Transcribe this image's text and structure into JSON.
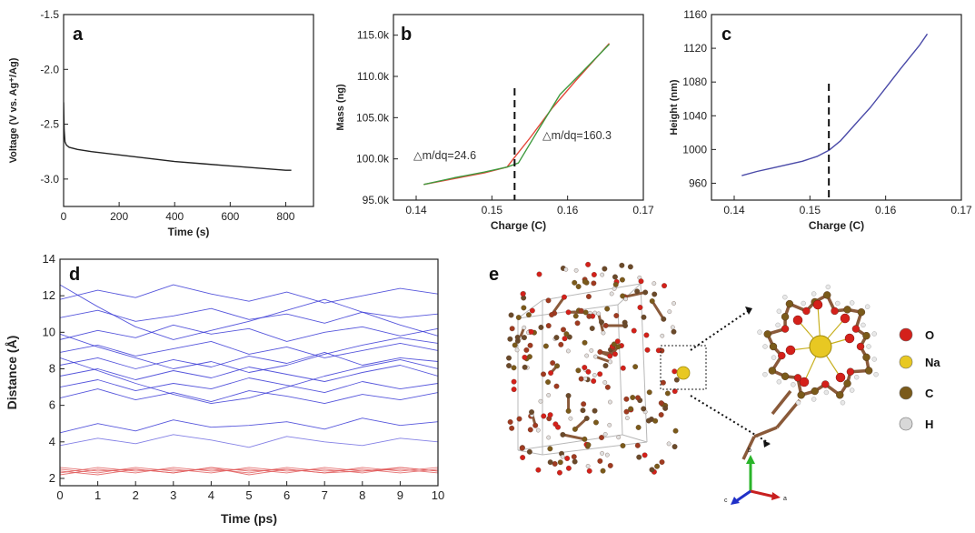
{
  "chart_data": [
    {
      "panel": "a",
      "type": "line",
      "xlabel": "Time (s)",
      "ylabel": "Voltage (V vs. Ag⁺/Ag)",
      "xlim": [
        0,
        900
      ],
      "ylim": [
        -3.25,
        -1.5
      ],
      "y_reversed": true,
      "xticks": [
        0,
        200,
        400,
        600,
        800
      ],
      "yticks": [
        -1.5,
        -2.0,
        -2.5,
        -3.0
      ],
      "ytick_labels": [
        "-1.5",
        "-2.0",
        "-2.5",
        "-3.0"
      ],
      "series": [
        {
          "color": "#222222",
          "x": [
            0,
            2,
            5,
            10,
            20,
            50,
            100,
            200,
            300,
            400,
            500,
            600,
            700,
            800,
            820
          ],
          "y": [
            -2.3,
            -2.55,
            -2.66,
            -2.69,
            -2.71,
            -2.73,
            -2.75,
            -2.78,
            -2.81,
            -2.84,
            -2.86,
            -2.88,
            -2.9,
            -2.92,
            -2.92
          ]
        }
      ]
    },
    {
      "panel": "b",
      "type": "line",
      "xlabel": "Charge (C)",
      "ylabel": "Mass (ng)",
      "xlim": [
        0.137,
        0.17
      ],
      "ylim": [
        95000,
        117500
      ],
      "xticks": [
        0.14,
        0.15,
        0.16,
        0.17
      ],
      "xtick_labels": [
        "0.14",
        "0.15",
        "0.16",
        "0.17"
      ],
      "yticks": [
        95000,
        100000,
        105000,
        110000,
        115000
      ],
      "ytick_labels": [
        "95.0k",
        "100.0k",
        "105.0k",
        "110.0k",
        "115.0k"
      ],
      "dashed_x": 0.153,
      "annotations": [
        "△m/dq=24.6",
        "△m/dq=160.3"
      ],
      "series": [
        {
          "color": "#e4473a",
          "x": [
            0.141,
            0.145,
            0.149,
            0.152,
            0.153,
            0.155,
            0.158,
            0.161,
            0.1655
          ],
          "y": [
            96900,
            97600,
            98300,
            99000,
            100200,
            102500,
            106200,
            109400,
            114000
          ]
        },
        {
          "color": "#3e9a3e",
          "x": [
            0.141,
            0.145,
            0.149,
            0.152,
            0.1535,
            0.156,
            0.159,
            0.162,
            0.1655
          ],
          "y": [
            96900,
            97700,
            98400,
            99000,
            99500,
            103300,
            107800,
            110600,
            113900
          ]
        }
      ]
    },
    {
      "panel": "c",
      "type": "line",
      "xlabel": "Charge (C)",
      "ylabel": "Height (nm)",
      "xlim": [
        0.137,
        0.17
      ],
      "ylim": [
        940,
        1160
      ],
      "xticks": [
        0.14,
        0.15,
        0.16,
        0.17
      ],
      "xtick_labels": [
        "0.14",
        "0.15",
        "0.16",
        "0.17"
      ],
      "yticks": [
        960,
        1000,
        1040,
        1080,
        1120,
        1160
      ],
      "dashed_x": 0.1525,
      "series": [
        {
          "color": "#4a4aa8",
          "x": [
            0.141,
            0.143,
            0.145,
            0.147,
            0.149,
            0.151,
            0.1525,
            0.154,
            0.156,
            0.158,
            0.16,
            0.162,
            0.1645,
            0.1655
          ],
          "y": [
            969,
            974,
            978,
            982,
            986,
            992,
            999,
            1010,
            1030,
            1050,
            1073,
            1096,
            1124,
            1137
          ]
        }
      ]
    },
    {
      "panel": "d",
      "type": "line",
      "xlabel": "Time (ps)",
      "ylabel": "Distance (Å)",
      "ylabel_rendered": "Distance (Å)",
      "xlim": [
        0,
        10
      ],
      "ylim": [
        1.6,
        14
      ],
      "xticks": [
        0,
        1,
        2,
        3,
        4,
        5,
        6,
        7,
        8,
        9,
        10
      ],
      "yticks": [
        2,
        4,
        6,
        8,
        10,
        12,
        14
      ],
      "series_description": "many trajectories",
      "series": [
        {
          "color": "#3a3ad6",
          "x": [
            0,
            1,
            2,
            3,
            4,
            5,
            6,
            7,
            8,
            9,
            10
          ],
          "y": [
            11.8,
            12.3,
            11.9,
            12.6,
            12.1,
            11.7,
            12.2,
            11.6,
            12.0,
            12.4,
            12.1
          ]
        },
        {
          "color": "#3a3ad6",
          "x": [
            0,
            1,
            2,
            3,
            4,
            5,
            6,
            7,
            8,
            9,
            10
          ],
          "y": [
            10.8,
            11.2,
            10.6,
            10.9,
            11.3,
            10.7,
            11.0,
            10.5,
            11.1,
            10.8,
            11.0
          ]
        },
        {
          "color": "#3a3ad6",
          "x": [
            0,
            1,
            2,
            3,
            4,
            5,
            6,
            7,
            8,
            9,
            10
          ],
          "y": [
            9.6,
            10.1,
            9.7,
            10.4,
            9.9,
            10.2,
            9.5,
            10.0,
            10.3,
            9.8,
            10.2
          ]
        },
        {
          "color": "#3a3ad6",
          "x": [
            0,
            1,
            2,
            3,
            4,
            5,
            6,
            7,
            8,
            9,
            10
          ],
          "y": [
            8.9,
            9.3,
            8.7,
            9.1,
            9.5,
            8.8,
            9.2,
            8.6,
            9.0,
            9.4,
            9.0
          ]
        },
        {
          "color": "#3a3ad6",
          "x": [
            0,
            1,
            2,
            3,
            4,
            5,
            6,
            7,
            8,
            9,
            10
          ],
          "y": [
            8.2,
            8.6,
            8.0,
            8.5,
            8.1,
            8.7,
            8.3,
            8.9,
            8.2,
            8.6,
            8.4
          ]
        },
        {
          "color": "#3a3ad6",
          "x": [
            0,
            1,
            2,
            3,
            4,
            5,
            6,
            7,
            8,
            9,
            10
          ],
          "y": [
            7.6,
            8.0,
            7.4,
            7.9,
            7.5,
            8.1,
            7.7,
            7.3,
            7.8,
            8.2,
            7.6
          ]
        },
        {
          "color": "#3a3ad6",
          "x": [
            0,
            1,
            2,
            3,
            4,
            5,
            6,
            7,
            8,
            9,
            10
          ],
          "y": [
            7.0,
            7.4,
            6.8,
            7.2,
            6.9,
            7.5,
            7.1,
            6.7,
            7.3,
            6.9,
            7.2
          ]
        },
        {
          "color": "#3a3ad6",
          "x": [
            0,
            1,
            2,
            3,
            4,
            5,
            6,
            7,
            8,
            9,
            10
          ],
          "y": [
            6.4,
            6.9,
            6.3,
            6.7,
            6.2,
            6.8,
            6.5,
            6.1,
            6.6,
            6.3,
            6.7
          ]
        },
        {
          "color": "#3a3ad6",
          "x": [
            0,
            1,
            2,
            3,
            4,
            5,
            6,
            7,
            8,
            9,
            10
          ],
          "y": [
            9.9,
            9.2,
            8.6,
            8.0,
            8.4,
            7.8,
            8.2,
            8.8,
            9.3,
            9.7,
            9.4
          ]
        },
        {
          "color": "#3a3ad6",
          "x": [
            0,
            1,
            2,
            3,
            4,
            5,
            6,
            7,
            8,
            9,
            10
          ],
          "y": [
            12.6,
            11.4,
            10.3,
            9.6,
            10.1,
            10.6,
            11.2,
            11.8,
            11.1,
            10.4,
            9.8
          ]
        },
        {
          "color": "#3a3ad6",
          "x": [
            0,
            1,
            2,
            3,
            4,
            5,
            6,
            7,
            8,
            9,
            10
          ],
          "y": [
            8.6,
            7.9,
            7.2,
            6.6,
            6.1,
            6.4,
            7.0,
            7.6,
            8.1,
            8.5,
            8.0
          ]
        },
        {
          "color": "#3a3ad6",
          "x": [
            0,
            1,
            2,
            3,
            4,
            5,
            6,
            7,
            8,
            9,
            10
          ],
          "y": [
            4.5,
            5.0,
            4.6,
            5.2,
            4.8,
            4.9,
            5.1,
            4.7,
            5.3,
            4.9,
            5.1
          ]
        },
        {
          "color": "#6d6ae0",
          "x": [
            0,
            1,
            2,
            3,
            4,
            5,
            6,
            7,
            8,
            9,
            10
          ],
          "y": [
            3.8,
            4.2,
            3.9,
            4.4,
            4.1,
            3.7,
            4.3,
            4.0,
            3.8,
            4.2,
            4.0
          ]
        },
        {
          "color": "#e05a5a",
          "x": [
            0,
            1,
            2,
            3,
            4,
            5,
            6,
            7,
            8,
            9,
            10
          ],
          "y": [
            2.5,
            2.3,
            2.6,
            2.4,
            2.5,
            2.3,
            2.6,
            2.4,
            2.5,
            2.3,
            2.5
          ]
        },
        {
          "color": "#e05a5a",
          "x": [
            0,
            1,
            2,
            3,
            4,
            5,
            6,
            7,
            8,
            9,
            10
          ],
          "y": [
            2.3,
            2.6,
            2.4,
            2.5,
            2.3,
            2.6,
            2.4,
            2.5,
            2.3,
            2.6,
            2.4
          ]
        },
        {
          "color": "#e05a5a",
          "x": [
            0,
            1,
            2,
            3,
            4,
            5,
            6,
            7,
            8,
            9,
            10
          ],
          "y": [
            2.6,
            2.4,
            2.5,
            2.3,
            2.6,
            2.4,
            2.5,
            2.3,
            2.6,
            2.4,
            2.6
          ]
        },
        {
          "color": "#e05a5a",
          "x": [
            0,
            1,
            2,
            3,
            4,
            5,
            6,
            7,
            8,
            9,
            10
          ],
          "y": [
            2.2,
            2.5,
            2.3,
            2.6,
            2.4,
            2.5,
            2.3,
            2.6,
            2.4,
            2.5,
            2.3
          ]
        },
        {
          "color": "#e05a5a",
          "x": [
            0,
            1,
            2,
            3,
            4,
            5,
            6,
            7,
            8,
            9,
            10
          ],
          "y": [
            2.4,
            2.2,
            2.5,
            2.3,
            2.6,
            2.2,
            2.5,
            2.3,
            2.4,
            2.6,
            2.4
          ]
        }
      ]
    }
  ],
  "panel_labels": {
    "a": "a",
    "b": "b",
    "c": "c",
    "d": "d",
    "e": "e"
  },
  "structure_legend": [
    {
      "label": "O",
      "color": "#d4201a"
    },
    {
      "label": "Na",
      "color": "#e8c822"
    },
    {
      "label": "C",
      "color": "#7a5a1a"
    },
    {
      "label": "H",
      "color": "#d8d8d8"
    }
  ],
  "axis_triad": {
    "labels": [
      "b",
      "c",
      "a"
    ]
  }
}
